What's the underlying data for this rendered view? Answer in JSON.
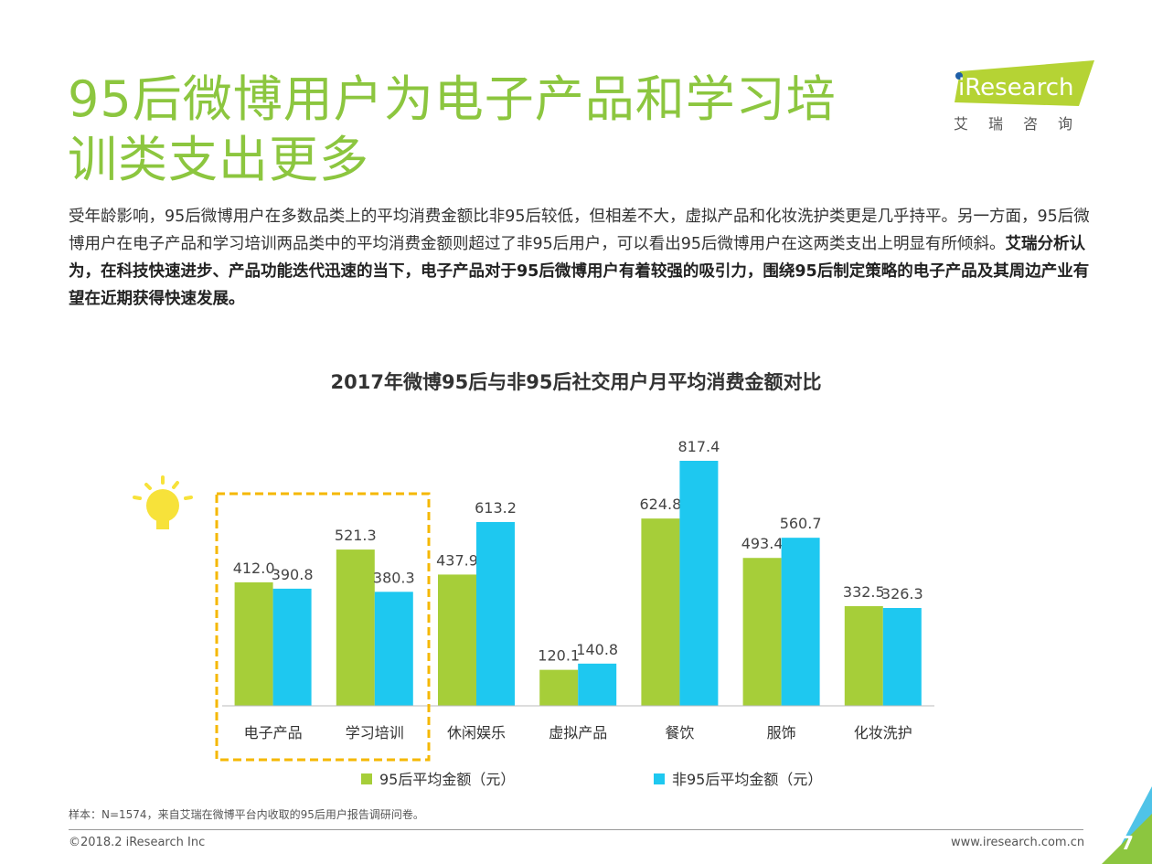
{
  "header": {
    "title_line1": "95后微博用户为电子产品和学习培",
    "title_line2": "训类支出更多",
    "logo_text": "iResearch",
    "logo_sub": "艾瑞咨询"
  },
  "description": {
    "normal": "受年龄影响，95后微博用户在多数品类上的平均消费金额比非95后较低，但相差不大，虚拟产品和化妆洗护类更是几乎持平。另一方面，95后微博用户在电子产品和学习培训两品类中的平均消费金额则超过了非95后用户，可以看出95后微博用户在这两类支出上明显有所倾斜。",
    "bold": "艾瑞分析认为，在科技快速进步、产品功能迭代迅速的当下，电子产品对于95后微博用户有着较强的吸引力，围绕95后制定策略的电子产品及其周边产业有望在近期获得快速发展。"
  },
  "chart_data": {
    "type": "bar",
    "title": "2017年微博95后与非95后社交用户月平均消费金额对比",
    "categories": [
      "电子产品",
      "学习培训",
      "休闲娱乐",
      "虚拟产品",
      "餐饮",
      "服饰",
      "化妆洗护"
    ],
    "series": [
      {
        "name": "95后平均金额（元）",
        "color": "#a6ce39",
        "values": [
          412.0,
          521.3,
          437.9,
          120.1,
          624.8,
          493.4,
          332.5
        ]
      },
      {
        "name": "非95后平均金额（元）",
        "color": "#1ec8f0",
        "values": [
          390.8,
          380.3,
          613.2,
          140.8,
          817.4,
          560.7,
          326.3
        ]
      }
    ],
    "legend": "bottom",
    "highlight": [
      "电子产品",
      "学习培训"
    ],
    "highlight_color": "#f5b800",
    "grid": false
  },
  "footer": {
    "note": "样本：N=1574，来自艾瑞在微博平台内收取的95后用户报告调研问卷。",
    "copyright": "©2018.2 iResearch Inc",
    "url": "www.iresearch.com.cn",
    "page": "7"
  }
}
